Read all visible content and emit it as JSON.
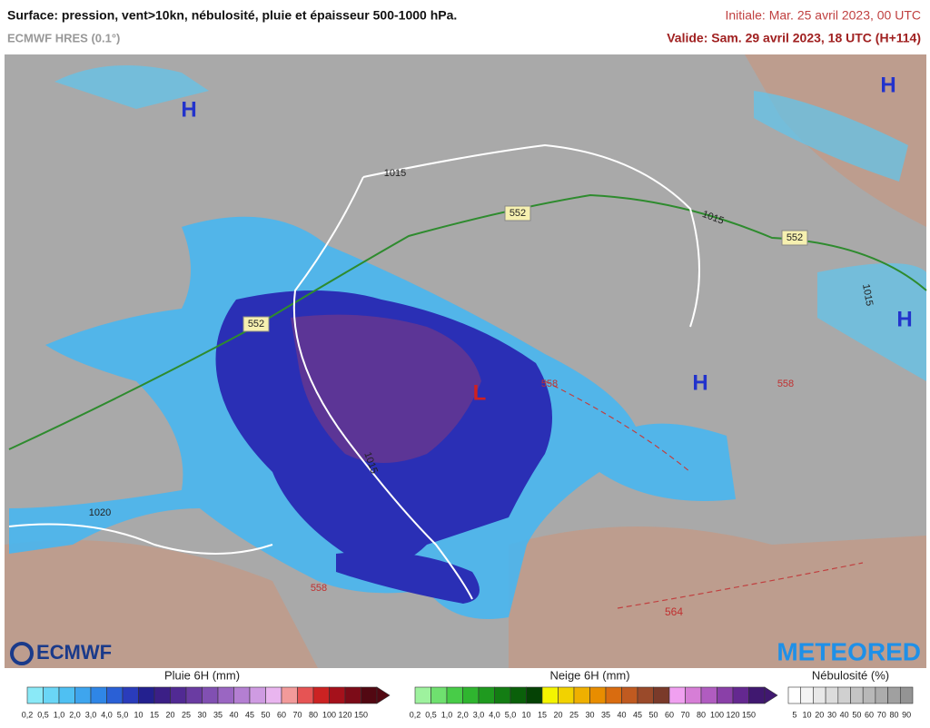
{
  "header": {
    "title": "Surface: pression, vent>10kn, nébulosité, pluie et épaisseur 500-1000 hPa.",
    "model": "ECMWF HRES (0.1°)",
    "initial": "Initiale: Mar. 25 avril 2023, 00 UTC",
    "valid": "Valide: Sam. 29 avril 2023, 18 UTC (H+114)"
  },
  "map": {
    "centers": [
      "H",
      "H",
      "H",
      "H",
      "L"
    ],
    "isobars": [
      "1015",
      "1015",
      "1015",
      "1015",
      "1020"
    ],
    "thickness": [
      "552",
      "552",
      "552",
      "558",
      "558",
      "558",
      "564"
    ]
  },
  "logos": {
    "left": "ECMWF",
    "right": "METEORED"
  },
  "legends": [
    {
      "title": "Pluie 6H (mm)",
      "labels": [
        "0,2",
        "0,5",
        "1,0",
        "2,0",
        "3,0",
        "4,0",
        "5,0",
        "10",
        "15",
        "20",
        "25",
        "30",
        "35",
        "40",
        "45",
        "50",
        "60",
        "70",
        "80",
        "100",
        "120",
        "150"
      ],
      "colors": [
        "#8ae9f7",
        "#6ad6f6",
        "#4fc0f2",
        "#3ea5ee",
        "#2f86e6",
        "#2a60d6",
        "#2a3cbb",
        "#23208f",
        "#3b1f86",
        "#512a93",
        "#6a3ca2",
        "#8150b2",
        "#9a66c2",
        "#b47fd2",
        "#cf9be2",
        "#e9b5ef",
        "#f29a9a",
        "#e65454",
        "#cc2222",
        "#a5111b",
        "#7c0b18",
        "#520812"
      ]
    },
    {
      "title": "Neige 6H (mm)",
      "labels": [
        "0,2",
        "0,5",
        "1,0",
        "2,0",
        "3,0",
        "4,0",
        "5,0",
        "10",
        "15",
        "20",
        "25",
        "30",
        "35",
        "40",
        "45",
        "50",
        "60",
        "70",
        "80",
        "100",
        "120",
        "150"
      ],
      "colors": [
        "#9ef29e",
        "#6fe06f",
        "#48cc48",
        "#2fb52f",
        "#1f9a1f",
        "#137d13",
        "#0a600a",
        "#054205",
        "#f4f400",
        "#f2d200",
        "#efb000",
        "#e88d00",
        "#d96c10",
        "#c05a20",
        "#9a4a2a",
        "#7a3a2a",
        "#f0a0f0",
        "#d67ed6",
        "#b05cc0",
        "#8a40a8",
        "#642890",
        "#401870"
      ]
    },
    {
      "title": "Nébulosité (%)",
      "labels": [
        "5",
        "10",
        "20",
        "30",
        "40",
        "50",
        "60",
        "70",
        "80",
        "90"
      ],
      "colors": [
        "#ffffff",
        "#f4f4f4",
        "#e8e8e8",
        "#dcdcdc",
        "#d0d0d0",
        "#c4c4c4",
        "#b8b8b8",
        "#acacac",
        "#a0a0a0",
        "#949494"
      ]
    }
  ]
}
